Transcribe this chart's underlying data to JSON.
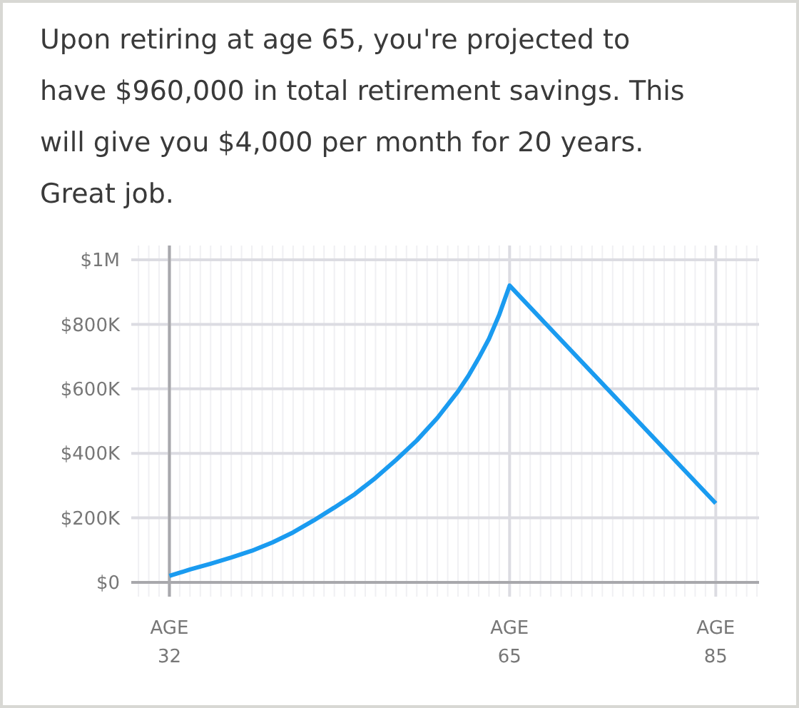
{
  "chart_data": {
    "type": "line",
    "title": "Upon retiring at age 65, you're projected to have $960,000 in total retirement savings. This will give you $4,000 per month for 20 years. Great job.",
    "x": [
      32,
      34,
      36,
      38,
      40,
      42,
      44,
      46,
      48,
      50,
      52,
      54,
      56,
      58,
      60,
      61,
      62,
      63,
      64,
      65,
      85
    ],
    "series": [
      {
        "color": "#1a9bf0",
        "values": [
          20000,
          40000,
          58000,
          77000,
          98000,
          124000,
          155000,
          192000,
          232000,
          274000,
          324000,
          380000,
          440000,
          510000,
          592000,
          640000,
          695000,
          755000,
          830000,
          920000,
          245000
        ]
      }
    ],
    "ref_lines": [
      {
        "axis": "x",
        "value": 32,
        "color": "#a8a8ac"
      }
    ],
    "xlim": [
      28.3,
      89.2
    ],
    "xticks": [
      32,
      65,
      85
    ],
    "xlabel": "AGE",
    "ylim": [
      0,
      1000000
    ],
    "yticks": [
      {
        "value": 0,
        "label": "$0"
      },
      {
        "value": 200000,
        "label": "$200K"
      },
      {
        "value": 400000,
        "label": "$400K"
      },
      {
        "value": 600000,
        "label": "$600K"
      },
      {
        "value": 800000,
        "label": "$800K"
      },
      {
        "value": 1000000,
        "label": "$1M"
      }
    ],
    "grid": true,
    "marker": "none",
    "line_style": "solid"
  }
}
